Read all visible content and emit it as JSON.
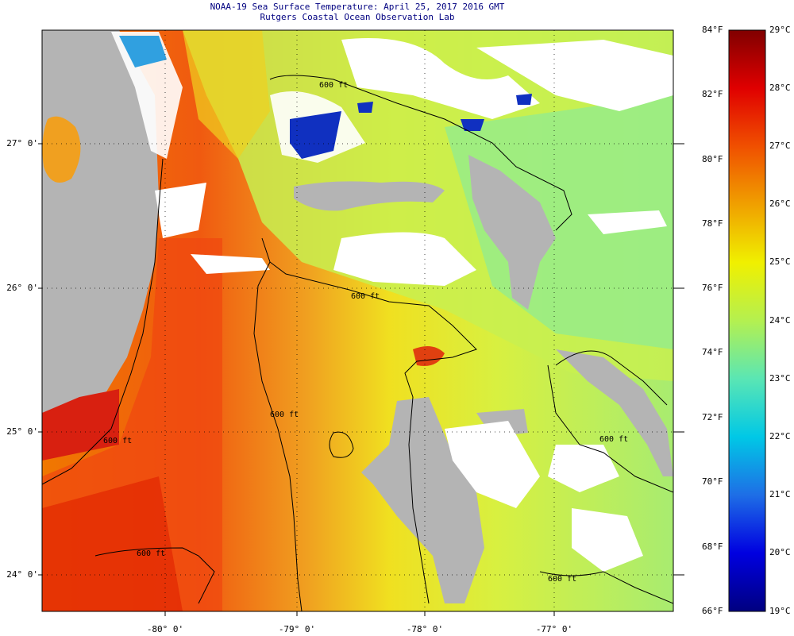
{
  "header": {
    "title": "NOAA-19 Sea Surface Temperature:  April 25, 2017 2016 GMT",
    "subtitle": "Rutgers Coastal Ocean Observation Lab"
  },
  "map": {
    "lat_labels": [
      "27° 0'",
      "26° 0'",
      "25° 0'",
      "24° 0'"
    ],
    "lon_labels": [
      "-80° 0'",
      "-79° 0'",
      "-78° 0'",
      "-77° 0'"
    ],
    "isobath_label": "600 ft"
  },
  "colorbar": {
    "f_labels": [
      "84°F",
      "82°F",
      "80°F",
      "78°F",
      "76°F",
      "74°F",
      "72°F",
      "70°F",
      "68°F",
      "66°F"
    ],
    "c_labels": [
      "29°C",
      "28°C",
      "27°C",
      "26°C",
      "25°C",
      "24°C",
      "23°C",
      "22°C",
      "21°C",
      "20°C",
      "19°C"
    ],
    "colors": [
      "#000080",
      "#0000e0",
      "#1e6ee6",
      "#00c8e6",
      "#5ae6b4",
      "#b4f050",
      "#f0f000",
      "#f0a000",
      "#f05000",
      "#e00000",
      "#800000"
    ]
  },
  "colors": {
    "land": "#b4b4b4",
    "cloud": "#ffffff",
    "contour": "#000000",
    "title": "#000080"
  }
}
